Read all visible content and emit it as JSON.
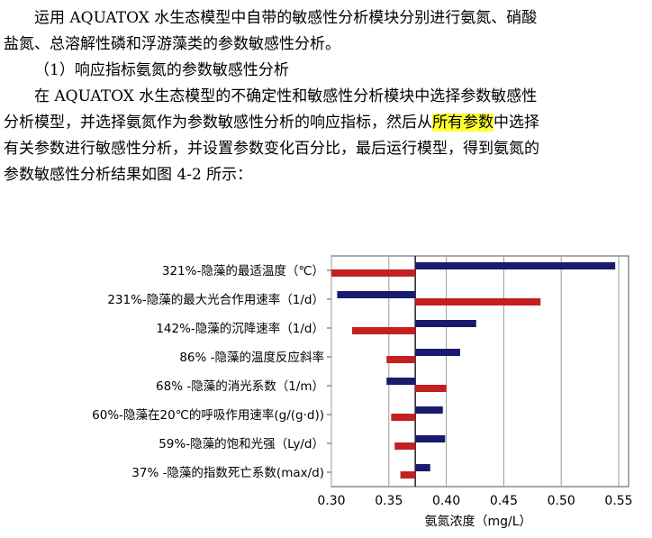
{
  "document": {
    "para1_line1": "运用 AQUATOX 水生态模型中自带的敏感性分析模块分别进行氨氮、硝酸",
    "para1_line2": "盐氮、总溶解性磷和浮游藻类的参数敏感性分析。",
    "section_heading": "（1）响应指标氨氮的参数敏感性分析",
    "para2_line1": "在 AQUATOX 水生态模型的不确定性和敏感性分析模块中选择参数敏感性",
    "para2_line2_before": "分析模型，并选择氨氮作为参数敏感性分析的响应指标，然后从",
    "para2_line2_highlight": "所有参数",
    "para2_line2_after": "中选择",
    "para2_line3": "有关参数进行敏感性分析，并设置参数变化百分比，最后运行模型，得到氨氮的",
    "para2_line4": "参数敏感性分析结果如图 4-2 所示："
  },
  "chart_data": {
    "type": "bar",
    "orientation": "horizontal-tornado",
    "baseline": 0.373,
    "categories": [
      "321%-隐藻的最适温度（℃）",
      "231%-隐藻的最大光合作用速率（1/d）",
      "142%-隐藻的沉降速率（1/d）",
      "86% -隐藻的温度反应斜率",
      "68% -隐藻的消光系数（1/m）",
      "60%-隐藻在20℃的呼吸作用速率(g/(g·d))",
      "59%-隐藻的饱和光强（Ly/d）",
      "37% -隐藻的指数死亡系数(max/d)"
    ],
    "series": [
      {
        "values": [
          0.547,
          0.305,
          0.426,
          0.412,
          0.348,
          0.397,
          0.399,
          0.386
        ]
      },
      {
        "values": [
          0.3,
          0.482,
          0.318,
          0.348,
          0.4,
          0.352,
          0.355,
          0.36
        ]
      }
    ],
    "colors": [
      "#1a1a6e",
      "#c42020"
    ],
    "xlim": [
      0.3,
      0.555
    ],
    "xticks": [
      "0.30",
      "0.35",
      "0.40",
      "0.45",
      "0.50",
      "0.55"
    ],
    "xlabel": "氨氮浓度（mg/L）",
    "grid": true
  }
}
